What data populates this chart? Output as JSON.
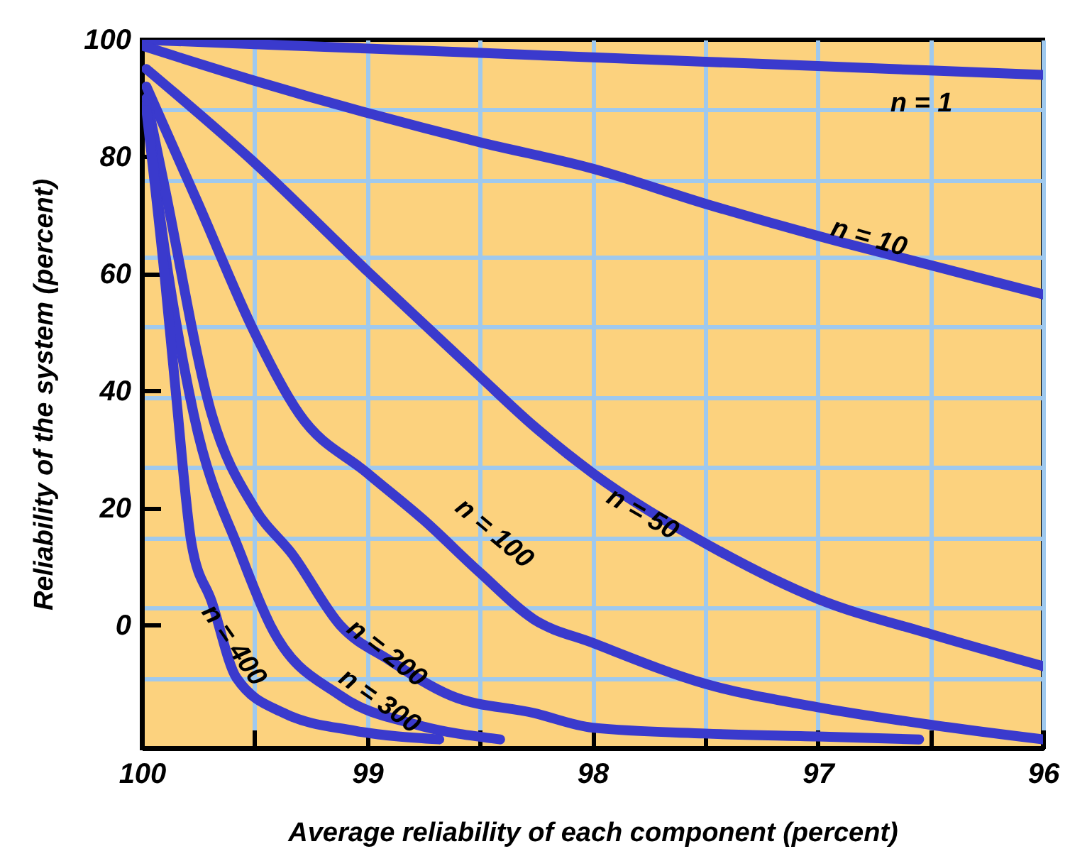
{
  "chart_data": {
    "type": "line",
    "xlabel": "Average reliability of each component (percent)",
    "ylabel": "Reliability of the system (percent)",
    "xlim": [
      100,
      96
    ],
    "ylim": [
      -21,
      100
    ],
    "xticks": [
      100,
      {
        "value": 99.5,
        "label": null
      },
      99,
      {
        "value": 98.5,
        "label": null
      },
      98,
      {
        "value": 97.5,
        "label": null
      },
      97,
      {
        "value": 96.5,
        "label": null
      },
      96
    ],
    "yticks": [
      100,
      {
        "value": 88,
        "label": null
      },
      80,
      {
        "value": 76,
        "label": null
      },
      {
        "value": 63,
        "label": null
      },
      60,
      {
        "value": 51,
        "label": null
      },
      40,
      {
        "value": 39,
        "label": null
      },
      {
        "value": 27,
        "label": null
      },
      20,
      {
        "value": 15,
        "label": null
      },
      {
        "value": 3,
        "label": null
      },
      0,
      {
        "value": -9,
        "label": null
      }
    ],
    "grid": true,
    "series": [
      {
        "name": "n = 1",
        "color": "#3a3acd",
        "x": [
          100,
          99,
          98,
          97,
          96
        ],
        "values": [
          100,
          98.5,
          97,
          95.5,
          94
        ]
      },
      {
        "name": "n = 10",
        "color": "#3a3acd",
        "x": [
          100,
          99.5,
          99,
          98.5,
          98,
          97.5,
          97,
          96.5,
          96
        ],
        "values": [
          99,
          93,
          87.5,
          82.5,
          78,
          72,
          66.5,
          61.5,
          56.5
        ]
      },
      {
        "name": "n = 50",
        "color": "#3a3acd",
        "x": [
          99.98,
          99.5,
          99,
          98.5,
          98.26,
          98,
          97.5,
          97,
          96.5,
          96
        ],
        "values": [
          95,
          79,
          60.5,
          42.5,
          34,
          26,
          14,
          4.5,
          -1.5,
          -7
        ]
      },
      {
        "name": "n = 100",
        "color": "#3a3acd",
        "x": [
          99.98,
          99.75,
          99.5,
          99.3,
          99,
          98.75,
          98.5,
          98.26,
          98,
          97.5,
          97,
          96.5,
          96
        ],
        "values": [
          92,
          72,
          50,
          36,
          26,
          18,
          9,
          1,
          -3,
          -10,
          -14,
          -17,
          -19.5
        ]
      },
      {
        "name": "n = 200",
        "color": "#3a3acd",
        "x": [
          99.98,
          99.9,
          99.69,
          99.5,
          99.33,
          99.12,
          98.9,
          98.63,
          98.26,
          98,
          97.5,
          97,
          96.55
        ],
        "values": [
          90,
          75,
          36,
          20,
          12,
          0,
          -6,
          -12,
          -15,
          -17.5,
          -18.5,
          -19,
          -19.5
        ]
      },
      {
        "name": "n = 300",
        "color": "#3a3acd",
        "x": [
          99.98,
          99.92,
          99.77,
          99.56,
          99.43,
          99.12,
          98.78,
          98.41
        ],
        "values": [
          89,
          70,
          36,
          12,
          0,
          -12,
          -17,
          -19.5
        ]
      },
      {
        "name": "n = 400",
        "color": "#3a3acd",
        "x": [
          99.98,
          99.9,
          99.85,
          99.78,
          99.69,
          99.58,
          99.37,
          99.06,
          98.68
        ],
        "values": [
          88,
          60,
          40,
          14,
          4,
          -9,
          -15,
          -18,
          -19.5
        ]
      }
    ]
  }
}
